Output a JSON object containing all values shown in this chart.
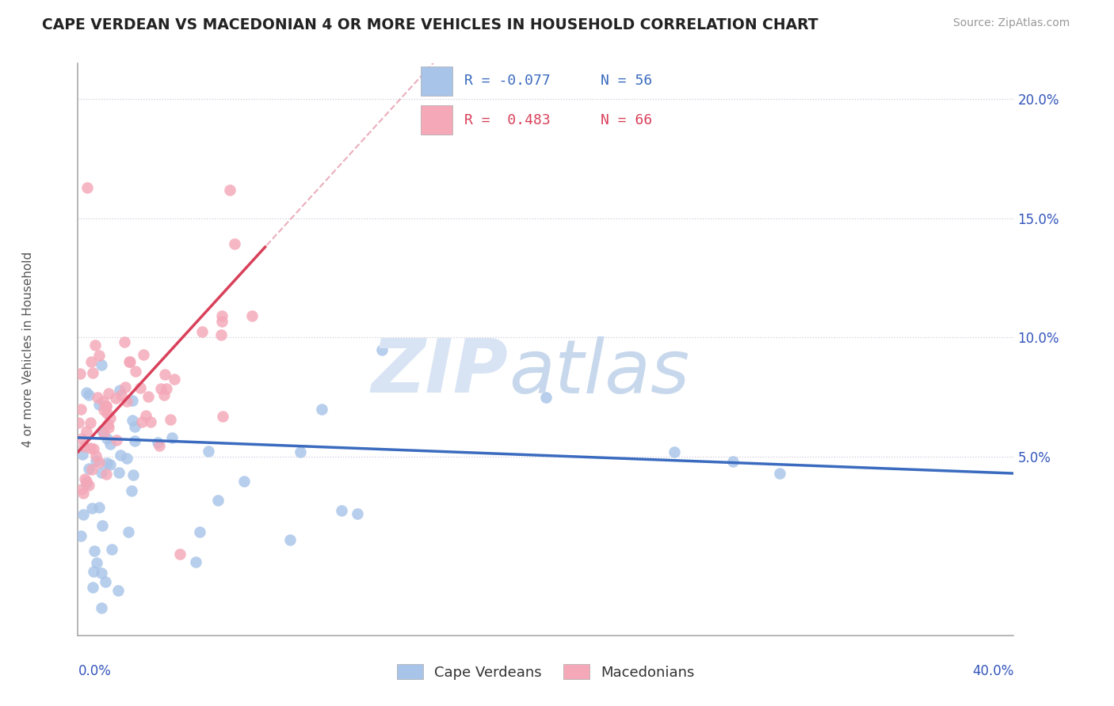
{
  "title": "CAPE VERDEAN VS MACEDONIAN 4 OR MORE VEHICLES IN HOUSEHOLD CORRELATION CHART",
  "source": "Source: ZipAtlas.com",
  "ylabel": "4 or more Vehicles in Household",
  "ytick_vals": [
    0.05,
    0.1,
    0.15,
    0.2
  ],
  "ytick_labels": [
    "5.0%",
    "10.0%",
    "15.0%",
    "20.0%"
  ],
  "xlim": [
    0.0,
    0.4
  ],
  "ylim": [
    -0.025,
    0.215
  ],
  "legend_blue_R": "-0.077",
  "legend_blue_N": "56",
  "legend_pink_R": "0.483",
  "legend_pink_N": "66",
  "blue_color": "#a8c4e8",
  "pink_color": "#f4a8b8",
  "blue_line_color": "#3a6bbf",
  "pink_line_color": "#d9405a",
  "pink_dash_color": "#e8a0b0",
  "grid_color": "#ccccdd",
  "watermark_zip_color": "#d0d8f0",
  "watermark_atlas_color": "#c0d0ea"
}
